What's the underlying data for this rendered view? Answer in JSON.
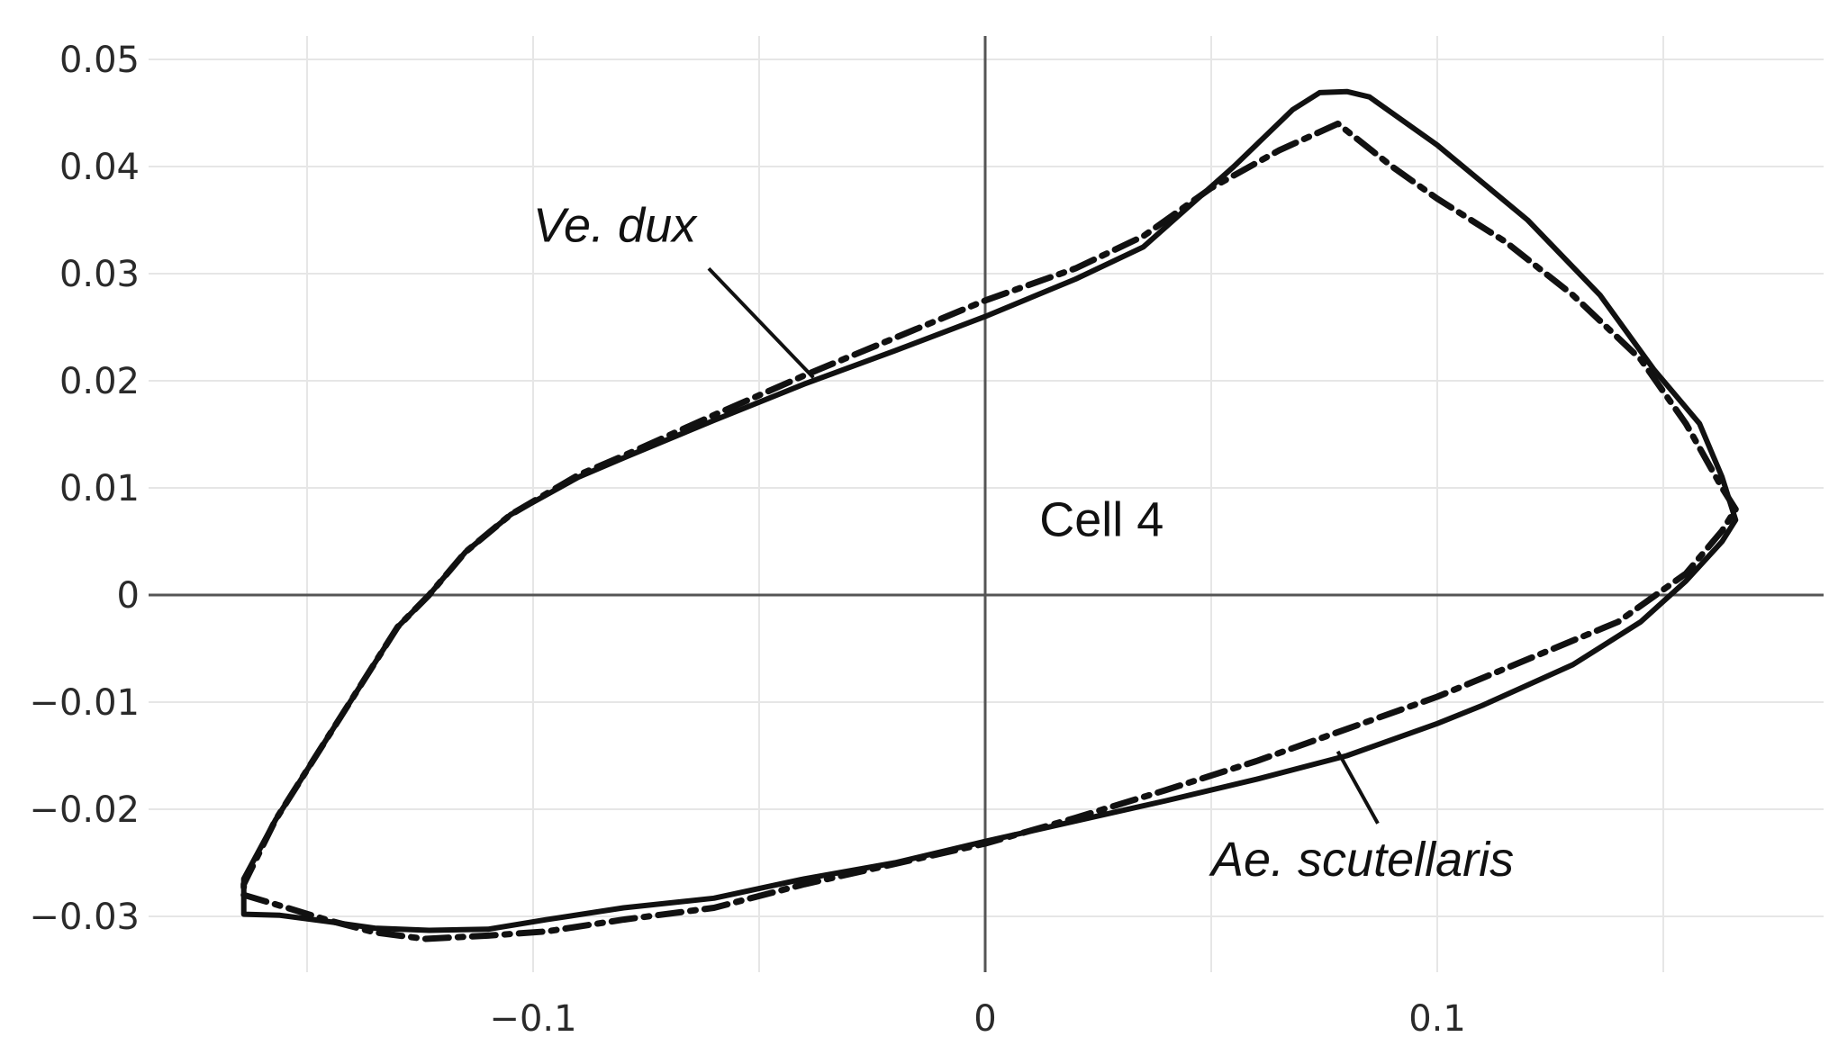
{
  "chart_data": {
    "type": "line",
    "xlim": [
      -0.165,
      0.185
    ],
    "ylim": [
      -0.034,
      0.052
    ],
    "x_ticks": [
      -0.1,
      0,
      0.1
    ],
    "x_tick_labels": [
      "−0.1",
      "0",
      "0.1"
    ],
    "y_ticks": [
      0.05,
      0.04,
      0.03,
      0.02,
      0.01,
      0,
      -0.01,
      -0.02,
      -0.03
    ],
    "y_tick_labels": [
      "0.05",
      "0.04",
      "0.03",
      "0.02",
      "0.01",
      "0",
      "−0.01",
      "−0.02",
      "−0.03"
    ],
    "grid": true,
    "series": [
      {
        "name": "Ve. dux",
        "color": "#111111",
        "dash": "solid",
        "points": [
          [
            -0.164,
            -0.0298
          ],
          [
            -0.156,
            -0.0299
          ],
          [
            -0.145,
            -0.0305
          ],
          [
            -0.135,
            -0.0311
          ],
          [
            -0.123,
            -0.0313
          ],
          [
            -0.11,
            -0.0312
          ],
          [
            -0.097,
            -0.0303
          ],
          [
            -0.08,
            -0.0292
          ],
          [
            -0.06,
            -0.0283
          ],
          [
            -0.04,
            -0.0265
          ],
          [
            -0.02,
            -0.025
          ],
          [
            0,
            -0.023
          ],
          [
            0.02,
            -0.0211
          ],
          [
            0.04,
            -0.0192
          ],
          [
            0.06,
            -0.0172
          ],
          [
            0.08,
            -0.015
          ],
          [
            0.1,
            -0.012
          ],
          [
            0.11,
            -0.0103
          ],
          [
            0.13,
            -0.0065
          ],
          [
            0.145,
            -0.0025
          ],
          [
            0.155,
            0.0013
          ],
          [
            0.163,
            0.005
          ],
          [
            0.166,
            0.007
          ],
          [
            0.163,
            0.011
          ],
          [
            0.158,
            0.016
          ],
          [
            0.148,
            0.021
          ],
          [
            0.136,
            0.028
          ],
          [
            0.12,
            0.035
          ],
          [
            0.1,
            0.042
          ],
          [
            0.085,
            0.0465
          ],
          [
            0.08,
            0.047
          ],
          [
            0.074,
            0.0469
          ],
          [
            0.068,
            0.0453
          ],
          [
            0.055,
            0.04
          ],
          [
            0.035,
            0.0325
          ],
          [
            0.02,
            0.0295
          ],
          [
            0,
            0.026
          ],
          [
            -0.02,
            0.0228
          ],
          [
            -0.04,
            0.0197
          ],
          [
            -0.06,
            0.0163
          ],
          [
            -0.08,
            0.0128
          ],
          [
            -0.09,
            0.011
          ],
          [
            -0.105,
            0.0075
          ],
          [
            -0.115,
            0.004
          ],
          [
            -0.123,
            0.0
          ],
          [
            -0.13,
            -0.003
          ],
          [
            -0.139,
            -0.009
          ],
          [
            -0.148,
            -0.015
          ],
          [
            -0.157,
            -0.021
          ],
          [
            -0.164,
            -0.0265
          ],
          [
            -0.164,
            -0.0298
          ]
        ]
      },
      {
        "name": "Ae. scutellaris",
        "color": "#111111",
        "dash": "dashdot",
        "points": [
          [
            -0.164,
            -0.028
          ],
          [
            -0.156,
            -0.029
          ],
          [
            -0.145,
            -0.0304
          ],
          [
            -0.135,
            -0.0315
          ],
          [
            -0.124,
            -0.0321
          ],
          [
            -0.11,
            -0.0318
          ],
          [
            -0.097,
            -0.0314
          ],
          [
            -0.08,
            -0.0303
          ],
          [
            -0.06,
            -0.0292
          ],
          [
            -0.04,
            -0.027
          ],
          [
            -0.02,
            -0.0251
          ],
          [
            0,
            -0.0232
          ],
          [
            0.02,
            -0.0208
          ],
          [
            0.04,
            -0.0182
          ],
          [
            0.06,
            -0.0155
          ],
          [
            0.08,
            -0.0125
          ],
          [
            0.1,
            -0.0095
          ],
          [
            0.12,
            -0.006
          ],
          [
            0.14,
            -0.0025
          ],
          [
            0.155,
            0.002
          ],
          [
            0.163,
            0.006
          ],
          [
            0.166,
            0.008
          ],
          [
            0.163,
            0.01
          ],
          [
            0.155,
            0.016
          ],
          [
            0.145,
            0.022
          ],
          [
            0.13,
            0.028
          ],
          [
            0.115,
            0.033
          ],
          [
            0.1,
            0.037
          ],
          [
            0.09,
            0.04
          ],
          [
            0.078,
            0.044
          ],
          [
            0.065,
            0.0415
          ],
          [
            0.05,
            0.038
          ],
          [
            0.035,
            0.0335
          ],
          [
            0.02,
            0.0305
          ],
          [
            0,
            0.0275
          ],
          [
            -0.02,
            0.024
          ],
          [
            -0.04,
            0.0205
          ],
          [
            -0.06,
            0.0168
          ],
          [
            -0.08,
            0.013
          ],
          [
            -0.09,
            0.0112
          ],
          [
            -0.105,
            0.0075
          ],
          [
            -0.115,
            0.004
          ],
          [
            -0.123,
            0.0
          ],
          [
            -0.13,
            -0.003
          ],
          [
            -0.139,
            -0.009
          ],
          [
            -0.148,
            -0.015
          ],
          [
            -0.157,
            -0.021
          ],
          [
            -0.164,
            -0.027
          ],
          [
            -0.164,
            -0.028
          ]
        ]
      }
    ],
    "annotations": [
      {
        "text": "Ve. dux",
        "italic": true,
        "x": -0.1,
        "y": 0.033,
        "pointer_to": [
          -0.038,
          0.0203
        ]
      },
      {
        "text": "Cell 4",
        "italic": false,
        "x": 0.012,
        "y": 0.0055
      },
      {
        "text": "Ae. scutellaris",
        "italic": true,
        "x": 0.05,
        "y": -0.0262,
        "pointer_to": [
          0.078,
          -0.0146
        ]
      }
    ]
  }
}
